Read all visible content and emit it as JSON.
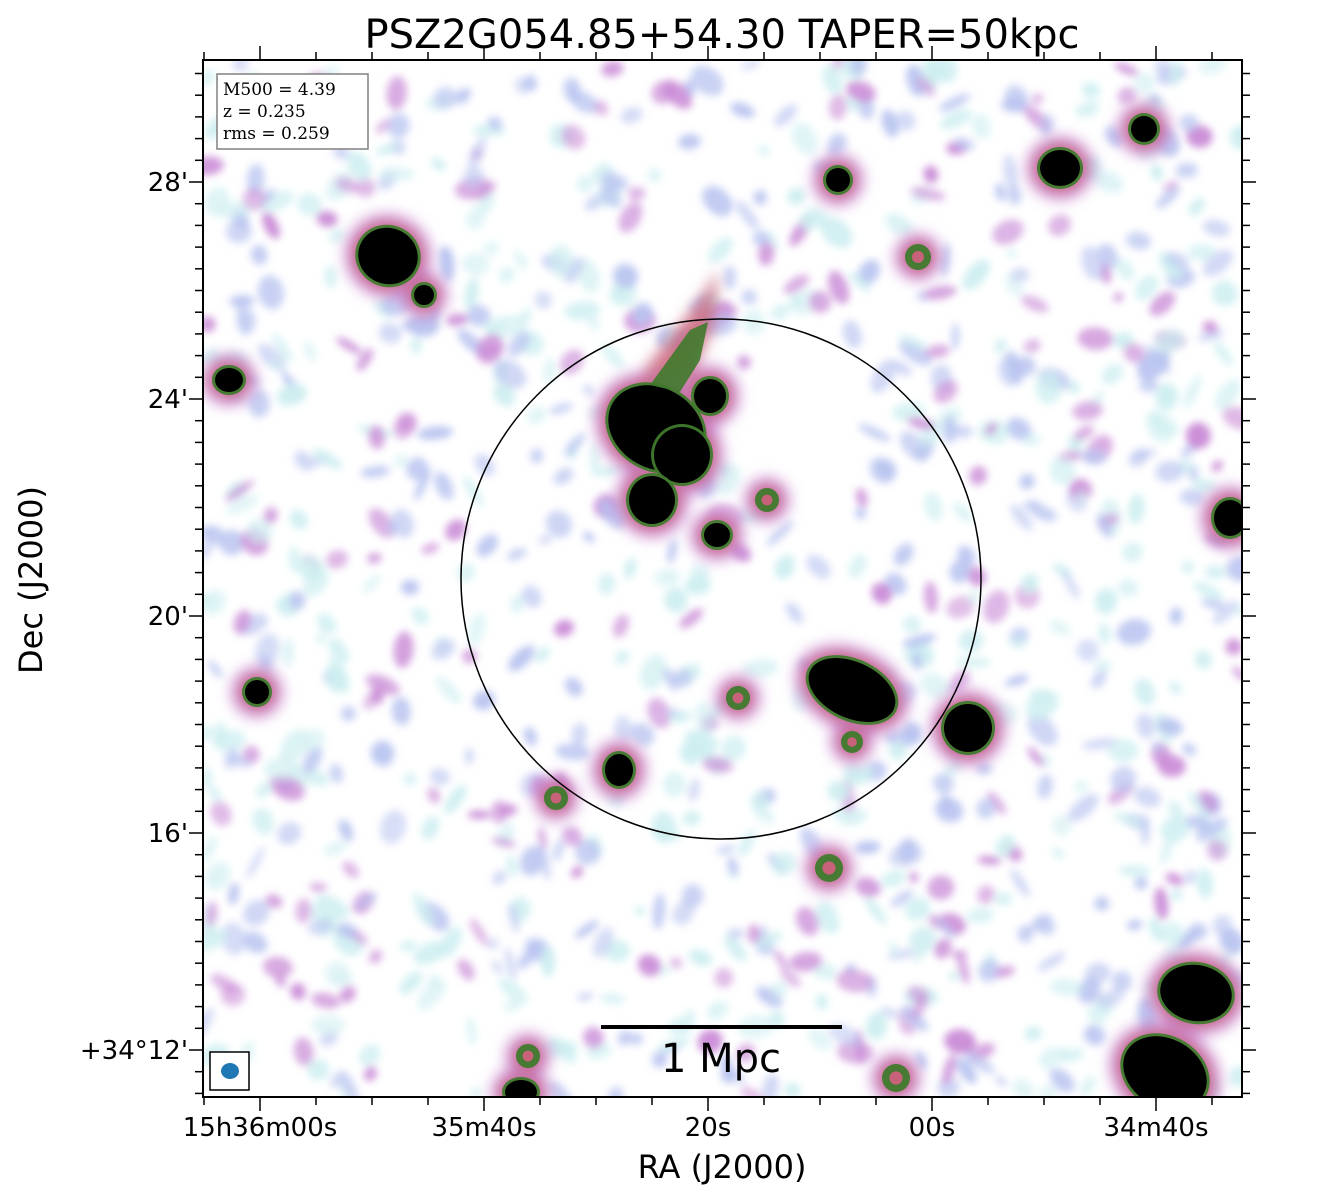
{
  "chart_data": {
    "type": "heatmap",
    "title": "PSZ2G054.85+54.30 TAPER=50kpc",
    "xlabel": "RA (J2000)",
    "ylabel": "Dec (J2000)",
    "x_tick_labels": [
      "15h36m00s",
      "35m40s",
      "20s",
      "00s",
      "34m40s"
    ],
    "y_tick_labels": [
      "28'",
      "24'",
      "20'",
      "16'",
      "+34°12'"
    ],
    "info_box": {
      "m500": "M500 = 4.39",
      "z": "z = 0.235",
      "rms": "rms = 0.259"
    },
    "scalebar_label": "1 Mpc",
    "colormap": [
      "#ffffff",
      "#cdeef0",
      "#b9c4f0",
      "#c98ad6",
      "#c8627a",
      "#3f7a2c",
      "#000000"
    ],
    "circle_color": "#000000",
    "beam_color": "#1f77b4",
    "grid": false
  }
}
